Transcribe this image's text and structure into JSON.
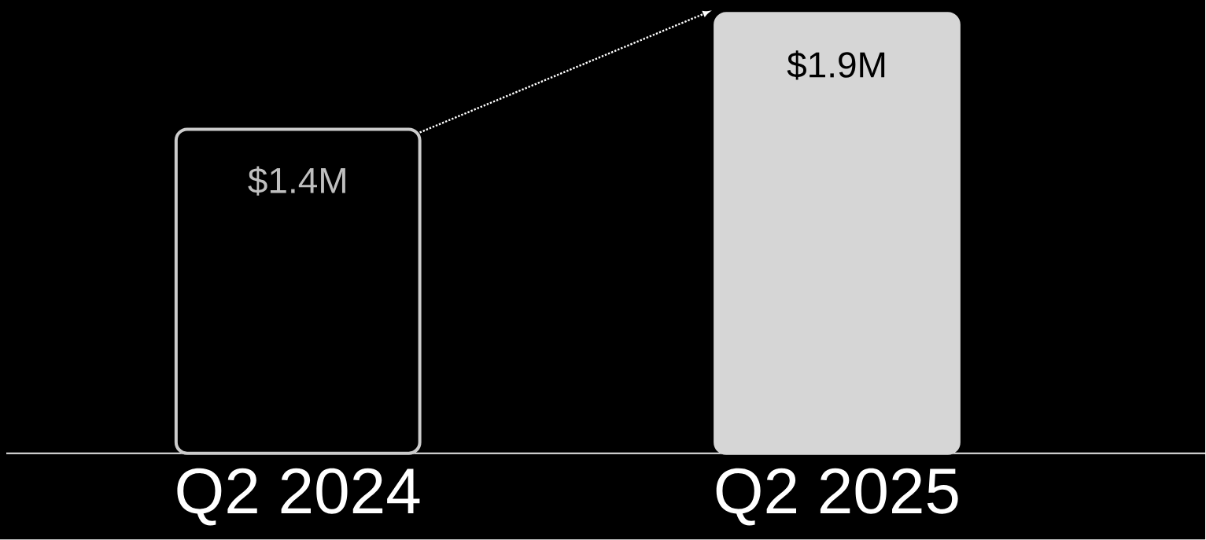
{
  "chart_data": {
    "type": "bar",
    "categories": [
      "Q2 2024",
      "Q2 2025"
    ],
    "values": [
      1.4,
      1.9
    ],
    "value_labels": [
      "$1.4M",
      "$1.9M"
    ],
    "colors": [
      "#000000",
      "#d6d6d6"
    ]
  }
}
